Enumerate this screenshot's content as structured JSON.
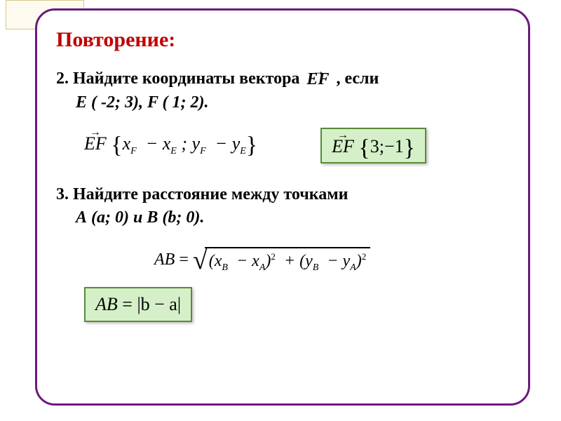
{
  "title": "Повторение:",
  "problem2": {
    "line1_pre": "2. Найдите координаты вектора ",
    "vec": "EF",
    "line1_post": " , если",
    "line2": "E ( -2; 3), F ( 1; 2).",
    "formula_vec": "EF",
    "formula_body_x1": "x",
    "formula_body_x1_sub": "F",
    "formula_body_x2": "x",
    "formula_body_x2_sub": "E",
    "formula_body_y1": "y",
    "formula_body_y1_sub": "F",
    "formula_body_y2": "y",
    "formula_body_y2_sub": "E",
    "answer_vec": "EF",
    "answer_body": "3;−1"
  },
  "problem3": {
    "line1": "3. Найдите расстояние между точками",
    "line2": "А (a; 0) и В (b; 0).",
    "lhs": "AB",
    "eq": "=",
    "xB": "x",
    "xB_sub": "B",
    "xA": "x",
    "xA_sub": "A",
    "yB": "y",
    "yB_sub": "B",
    "yA": "y",
    "yA_sub": "A",
    "answer_lhs": "AB",
    "answer_rhs": "|b − a|"
  },
  "colors": {
    "frame": "#6a1b7a",
    "title": "#c00000",
    "box_border": "#5a8a3a",
    "box_bg": "#d5f0c8",
    "tab_border": "#d4c890",
    "tab_bg": "#fdfbf0"
  }
}
